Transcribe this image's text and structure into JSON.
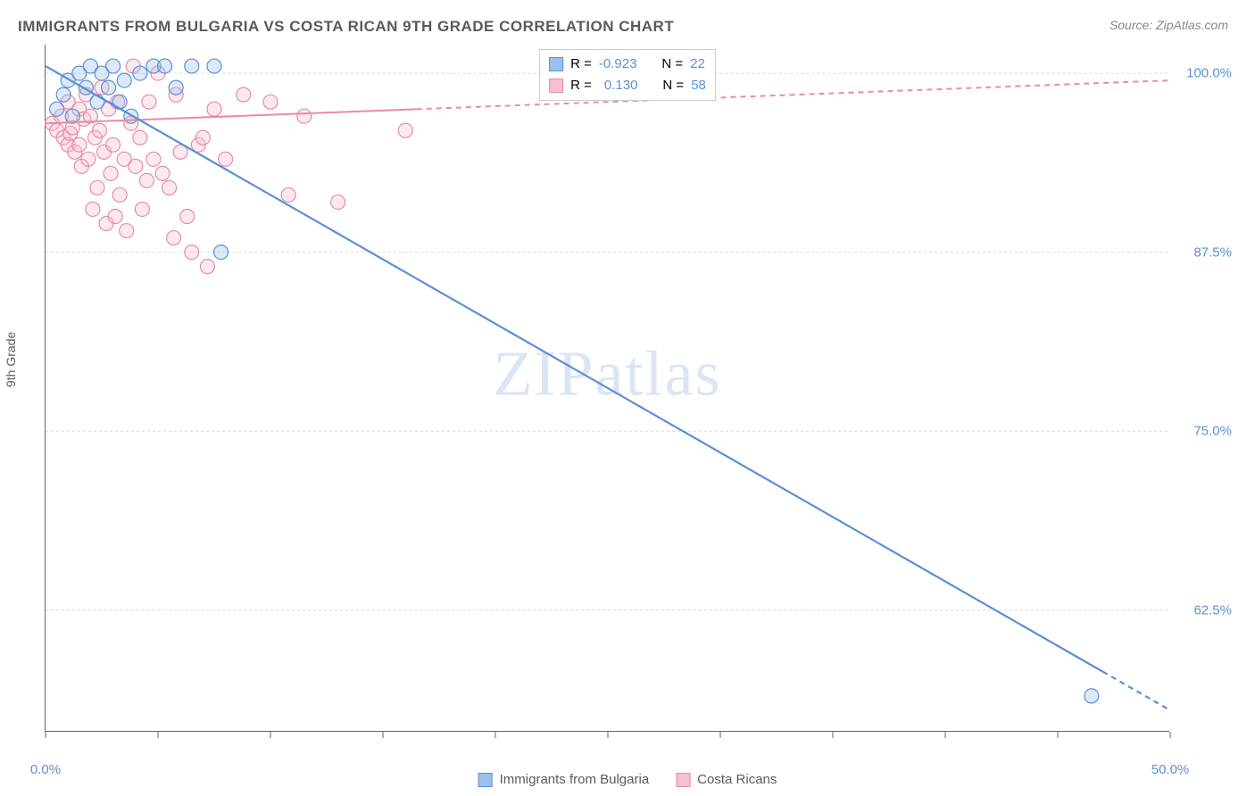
{
  "title": "IMMIGRANTS FROM BULGARIA VS COSTA RICAN 9TH GRADE CORRELATION CHART",
  "source_prefix": "Source: ",
  "source_name": "ZipAtlas.com",
  "y_axis_label": "9th Grade",
  "watermark": "ZIPatlas",
  "chart": {
    "type": "scatter-with-regression",
    "xlim": [
      0,
      50
    ],
    "ylim": [
      54,
      102
    ],
    "x_ticks": [
      0,
      5,
      10,
      15,
      20,
      25,
      30,
      35,
      40,
      45,
      50
    ],
    "x_tick_labels": {
      "0": "0.0%",
      "50": "50.0%"
    },
    "y_gridlines": [
      62.5,
      75,
      87.5,
      100
    ],
    "y_tick_labels": {
      "62.5": "62.5%",
      "75": "75.0%",
      "87.5": "87.5%",
      "100": "100.0%"
    },
    "grid_color": "#d8d8d8",
    "background_color": "#ffffff",
    "marker_radius": 8,
    "marker_fill_opacity": 0.35,
    "marker_stroke_width": 1.2,
    "series": {
      "bulgaria": {
        "label": "Immigrants from Bulgaria",
        "color_stroke": "#5b8fd6",
        "color_fill": "#9cc0ee",
        "R": "-0.923",
        "N": "22",
        "regression": {
          "x1": 0,
          "y1": 100.5,
          "x2": 50,
          "y2": 55.5,
          "solid_until_x": 47,
          "width": 2.2
        },
        "points": [
          [
            0.5,
            97.5
          ],
          [
            0.8,
            98.5
          ],
          [
            1.0,
            99.5
          ],
          [
            1.2,
            97.0
          ],
          [
            1.5,
            100.0
          ],
          [
            1.8,
            99.0
          ],
          [
            2.0,
            100.5
          ],
          [
            2.3,
            98.0
          ],
          [
            2.5,
            100.0
          ],
          [
            2.8,
            99.0
          ],
          [
            3.0,
            100.5
          ],
          [
            3.3,
            98.0
          ],
          [
            3.5,
            99.5
          ],
          [
            3.8,
            97.0
          ],
          [
            4.2,
            100.0
          ],
          [
            4.8,
            100.5
          ],
          [
            5.3,
            100.5
          ],
          [
            5.8,
            99.0
          ],
          [
            6.5,
            100.5
          ],
          [
            7.5,
            100.5
          ],
          [
            7.8,
            87.5
          ],
          [
            46.5,
            56.5
          ]
        ]
      },
      "costarica": {
        "label": "Costa Ricans",
        "color_stroke": "#e88ba6",
        "color_fill": "#f6c0cf",
        "R": "0.130",
        "N": "58",
        "regression": {
          "x1": 0,
          "y1": 96.5,
          "x2": 50,
          "y2": 99.5,
          "solid_until_x": 16.5,
          "width": 2.0
        },
        "points": [
          [
            0.3,
            96.5
          ],
          [
            0.5,
            96.0
          ],
          [
            0.7,
            97.0
          ],
          [
            0.8,
            95.5
          ],
          [
            1.0,
            95.0
          ],
          [
            1.0,
            98.0
          ],
          [
            1.1,
            95.8
          ],
          [
            1.2,
            96.2
          ],
          [
            1.3,
            94.5
          ],
          [
            1.5,
            97.5
          ],
          [
            1.5,
            95.0
          ],
          [
            1.6,
            93.5
          ],
          [
            1.7,
            96.8
          ],
          [
            1.8,
            98.5
          ],
          [
            1.9,
            94.0
          ],
          [
            2.0,
            97.0
          ],
          [
            2.1,
            90.5
          ],
          [
            2.2,
            95.5
          ],
          [
            2.3,
            92.0
          ],
          [
            2.4,
            96.0
          ],
          [
            2.5,
            99.0
          ],
          [
            2.6,
            94.5
          ],
          [
            2.7,
            89.5
          ],
          [
            2.8,
            97.5
          ],
          [
            2.9,
            93.0
          ],
          [
            3.0,
            95.0
          ],
          [
            3.1,
            90.0
          ],
          [
            3.2,
            98.0
          ],
          [
            3.3,
            91.5
          ],
          [
            3.5,
            94.0
          ],
          [
            3.6,
            89.0
          ],
          [
            3.8,
            96.5
          ],
          [
            3.9,
            100.5
          ],
          [
            4.0,
            93.5
          ],
          [
            4.2,
            95.5
          ],
          [
            4.3,
            90.5
          ],
          [
            4.5,
            92.5
          ],
          [
            4.6,
            98.0
          ],
          [
            4.8,
            94.0
          ],
          [
            5.0,
            100.0
          ],
          [
            5.2,
            93.0
          ],
          [
            5.5,
            92.0
          ],
          [
            5.7,
            88.5
          ],
          [
            5.8,
            98.5
          ],
          [
            6.0,
            94.5
          ],
          [
            6.3,
            90.0
          ],
          [
            6.5,
            87.5
          ],
          [
            6.8,
            95.0
          ],
          [
            7.0,
            95.5
          ],
          [
            7.2,
            86.5
          ],
          [
            7.5,
            97.5
          ],
          [
            8.0,
            94.0
          ],
          [
            8.8,
            98.5
          ],
          [
            10.0,
            98.0
          ],
          [
            10.8,
            91.5
          ],
          [
            11.5,
            97.0
          ],
          [
            13.0,
            91.0
          ],
          [
            16.0,
            96.0
          ]
        ]
      }
    }
  },
  "legend_top": {
    "R_prefix": "R = ",
    "N_prefix": "N = "
  }
}
